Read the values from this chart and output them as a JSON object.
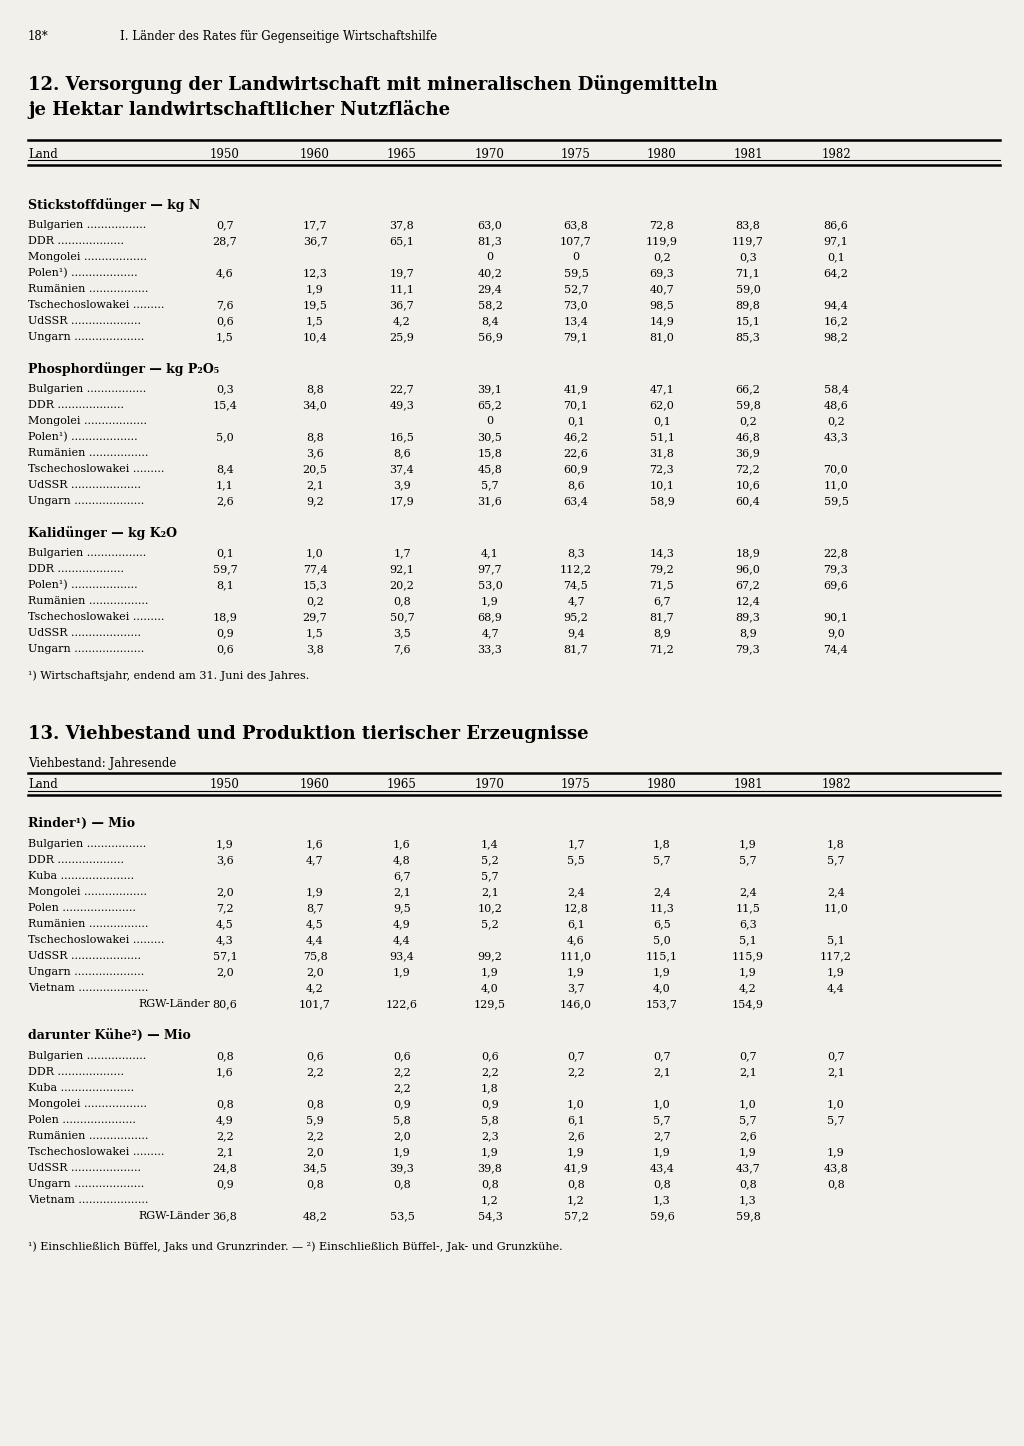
{
  "page_header": "18*",
  "page_subtitle": "I. Länder des Rates für Gegenseitige Wirtschaftshilfe",
  "table1_title_line1": "12. Versorgung der Landwirtschaft mit mineralischen Düngemitteln",
  "table1_title_line2": "je Hektar landwirtschaftlicher Nutzfläche",
  "table2_title": "13. Viehbestand und Produktion tierischer Erzeugnisse",
  "table2_subtitle": "Viehbestand: Jahresende",
  "years": [
    "Land",
    "1950",
    "1960",
    "1965",
    "1970",
    "1975",
    "1980",
    "1981",
    "1982"
  ],
  "section1_title": "Stickstoffdünger — kg N",
  "section1_rows": [
    [
      "Bulgarien .................",
      "0,7",
      "17,7",
      "37,8",
      "63,0",
      "63,8",
      "72,8",
      "83,8",
      "86,6"
    ],
    [
      "DDR ...................",
      "28,7",
      "36,7",
      "65,1",
      "81,3",
      "107,7",
      "119,9",
      "119,7",
      "97,1"
    ],
    [
      "Mongolei ..................",
      "",
      "",
      "",
      "0",
      "0",
      "0,2",
      "0,3",
      "0,1"
    ],
    [
      "Polen¹) ...................",
      "4,6",
      "12,3",
      "19,7",
      "40,2",
      "59,5",
      "69,3",
      "71,1",
      "64,2"
    ],
    [
      "Rumänien .................",
      "",
      "1,9",
      "11,1",
      "29,4",
      "52,7",
      "40,7",
      "59,0",
      ""
    ],
    [
      "Tschechoslowakei .........",
      "7,6",
      "19,5",
      "36,7",
      "58,2",
      "73,0",
      "98,5",
      "89,8",
      "94,4"
    ],
    [
      "UdSSR ....................",
      "0,6",
      "1,5",
      "4,2",
      "8,4",
      "13,4",
      "14,9",
      "15,1",
      "16,2"
    ],
    [
      "Ungarn ....................",
      "1,5",
      "10,4",
      "25,9",
      "56,9",
      "79,1",
      "81,0",
      "85,3",
      "98,2"
    ]
  ],
  "section2_title": "Phosphordünger — kg P₂O₅",
  "section2_rows": [
    [
      "Bulgarien .................",
      "0,3",
      "8,8",
      "22,7",
      "39,1",
      "41,9",
      "47,1",
      "66,2",
      "58,4"
    ],
    [
      "DDR ...................",
      "15,4",
      "34,0",
      "49,3",
      "65,2",
      "70,1",
      "62,0",
      "59,8",
      "48,6"
    ],
    [
      "Mongolei ..................",
      "",
      "",
      "",
      "0",
      "0,1",
      "0,1",
      "0,2",
      "0,2"
    ],
    [
      "Polen¹) ...................",
      "5,0",
      "8,8",
      "16,5",
      "30,5",
      "46,2",
      "51,1",
      "46,8",
      "43,3"
    ],
    [
      "Rumänien .................",
      "",
      "3,6",
      "8,6",
      "15,8",
      "22,6",
      "31,8",
      "36,9",
      ""
    ],
    [
      "Tschechoslowakei .........",
      "8,4",
      "20,5",
      "37,4",
      "45,8",
      "60,9",
      "72,3",
      "72,2",
      "70,0"
    ],
    [
      "UdSSR ....................",
      "1,1",
      "2,1",
      "3,9",
      "5,7",
      "8,6",
      "10,1",
      "10,6",
      "11,0"
    ],
    [
      "Ungarn ....................",
      "2,6",
      "9,2",
      "17,9",
      "31,6",
      "63,4",
      "58,9",
      "60,4",
      "59,5"
    ]
  ],
  "section3_title": "Kalidünger — kg K₂O",
  "section3_rows": [
    [
      "Bulgarien .................",
      "0,1",
      "1,0",
      "1,7",
      "4,1",
      "8,3",
      "14,3",
      "18,9",
      "22,8"
    ],
    [
      "DDR ...................",
      "59,7",
      "77,4",
      "92,1",
      "97,7",
      "112,2",
      "79,2",
      "96,0",
      "79,3"
    ],
    [
      "Polen¹) ...................",
      "8,1",
      "15,3",
      "20,2",
      "53,0",
      "74,5",
      "71,5",
      "67,2",
      "69,6"
    ],
    [
      "Rumänien .................",
      "",
      "0,2",
      "0,8",
      "1,9",
      "4,7",
      "6,7",
      "12,4",
      ""
    ],
    [
      "Tschechoslowakei .........",
      "18,9",
      "29,7",
      "50,7",
      "68,9",
      "95,2",
      "81,7",
      "89,3",
      "90,1"
    ],
    [
      "UdSSR ....................",
      "0,9",
      "1,5",
      "3,5",
      "4,7",
      "9,4",
      "8,9",
      "8,9",
      "9,0"
    ],
    [
      "Ungarn ....................",
      "0,6",
      "3,8",
      "7,6",
      "33,3",
      "81,7",
      "71,2",
      "79,3",
      "74,4"
    ]
  ],
  "footnote1": "¹) Wirtschaftsjahr, endend am 31. Juni des Jahres.",
  "section4_title": "Rinder¹) — Mio",
  "section4_rows": [
    [
      "Bulgarien .................",
      "1,9",
      "1,6",
      "1,6",
      "1,4",
      "1,7",
      "1,8",
      "1,9",
      "1,8"
    ],
    [
      "DDR ...................",
      "3,6",
      "4,7",
      "4,8",
      "5,2",
      "5,5",
      "5,7",
      "5,7",
      "5,7"
    ],
    [
      "Kuba .....................",
      "",
      "",
      "6,7",
      "5,7",
      "",
      "",
      "",
      ""
    ],
    [
      "Mongolei ..................",
      "2,0",
      "1,9",
      "2,1",
      "2,1",
      "2,4",
      "2,4",
      "2,4",
      "2,4"
    ],
    [
      "Polen .....................",
      "7,2",
      "8,7",
      "9,5",
      "10,2",
      "12,8",
      "11,3",
      "11,5",
      "11,0"
    ],
    [
      "Rumänien .................",
      "4,5",
      "4,5",
      "4,9",
      "5,2",
      "6,1",
      "6,5",
      "6,3",
      ""
    ],
    [
      "Tschechoslowakei .........",
      "4,3",
      "4,4",
      "4,4",
      "",
      "4,6",
      "5,0",
      "5,1",
      "5,1"
    ],
    [
      "UdSSR ....................",
      "57,1",
      "75,8",
      "93,4",
      "99,2",
      "111,0",
      "115,1",
      "115,9",
      "117,2"
    ],
    [
      "Ungarn ....................",
      "2,0",
      "2,0",
      "1,9",
      "1,9",
      "1,9",
      "1,9",
      "1,9",
      "1,9"
    ],
    [
      "Vietnam ....................",
      "",
      "4,2",
      "",
      "4,0",
      "3,7",
      "4,0",
      "4,2",
      "4,4"
    ],
    [
      "RGW-Länder",
      "80,6",
      "101,7",
      "122,6",
      "129,5",
      "146,0",
      "153,7",
      "154,9",
      ""
    ]
  ],
  "section5_title": "darunter Kühe²) — Mio",
  "section5_rows": [
    [
      "Bulgarien .................",
      "0,8",
      "0,6",
      "0,6",
      "0,6",
      "0,7",
      "0,7",
      "0,7",
      "0,7"
    ],
    [
      "DDR ...................",
      "1,6",
      "2,2",
      "2,2",
      "2,2",
      "2,2",
      "2,1",
      "2,1",
      "2,1"
    ],
    [
      "Kuba .....................",
      "",
      "",
      "2,2",
      "1,8",
      "",
      "",
      "",
      ""
    ],
    [
      "Mongolei ..................",
      "0,8",
      "0,8",
      "0,9",
      "0,9",
      "1,0",
      "1,0",
      "1,0",
      "1,0"
    ],
    [
      "Polen .....................",
      "4,9",
      "5,9",
      "5,8",
      "5,8",
      "6,1",
      "5,7",
      "5,7",
      "5,7"
    ],
    [
      "Rumänien .................",
      "2,2",
      "2,2",
      "2,0",
      "2,3",
      "2,6",
      "2,7",
      "2,6",
      ""
    ],
    [
      "Tschechoslowakei .........",
      "2,1",
      "2,0",
      "1,9",
      "1,9",
      "1,9",
      "1,9",
      "1,9",
      "1,9"
    ],
    [
      "UdSSR ....................",
      "24,8",
      "34,5",
      "39,3",
      "39,8",
      "41,9",
      "43,4",
      "43,7",
      "43,8"
    ],
    [
      "Ungarn ....................",
      "0,9",
      "0,8",
      "0,8",
      "0,8",
      "0,8",
      "0,8",
      "0,8",
      "0,8"
    ],
    [
      "Vietnam ....................",
      "",
      "",
      "",
      "1,2",
      "1,2",
      "1,3",
      "1,3",
      ""
    ],
    [
      "RGW-Länder",
      "36,8",
      "48,2",
      "53,5",
      "54,3",
      "57,2",
      "59,6",
      "59,8",
      ""
    ]
  ],
  "footnote2": "¹) Einschließlich Büffel, Jaks und Grunzrinder. — ²) Einschließlich Büffel-, Jak- und Grunzkühe.",
  "bg_color": "#f2f0eb"
}
